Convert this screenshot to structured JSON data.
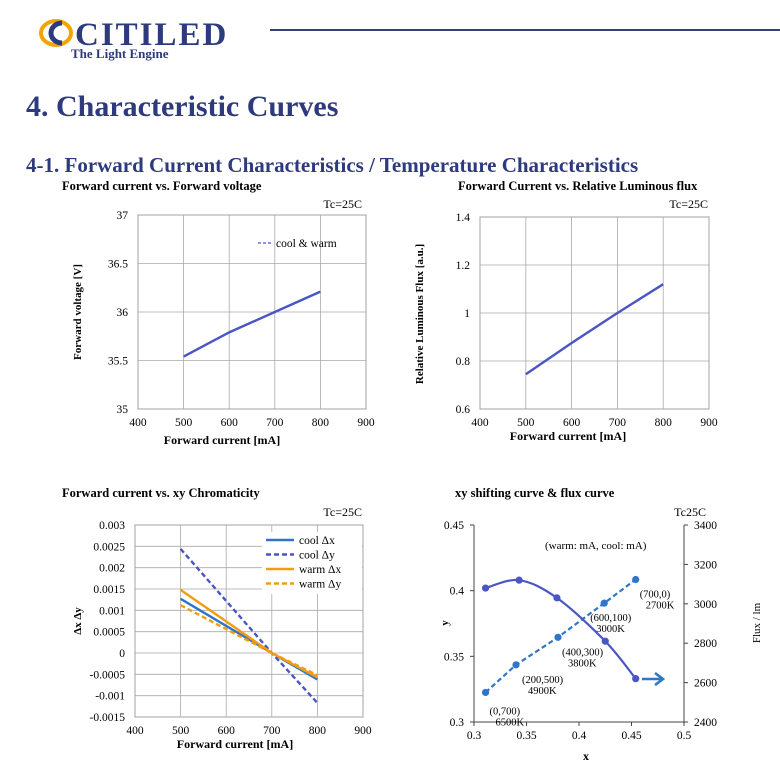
{
  "header": {
    "logo_text": "CITILED",
    "logo_tagline": "The Light Engine",
    "brand_color": "#2e3a7e",
    "accent_color": "#f0a500"
  },
  "section_title": "4. Characteristic Curves",
  "subsection_title": "4-1. Forward Current Characteristics / Temperature Characteristics",
  "chart_data": [
    {
      "type": "line",
      "title": "Forward current vs. Forward voltage",
      "condition": "Tc=25C",
      "xlabel": "Forward  current [mA]",
      "ylabel": "Forward voltage [V]",
      "xlim": [
        400,
        900
      ],
      "ylim": [
        35,
        37
      ],
      "xticks": [
        400,
        500,
        600,
        700,
        800,
        900
      ],
      "yticks": [
        35,
        35.5,
        36,
        36.5,
        37
      ],
      "grid": true,
      "legend_position": "top-right",
      "series": [
        {
          "name": "cool & warm",
          "color": "#4a56c4",
          "style": "solid",
          "x": [
            500,
            600,
            700,
            800
          ],
          "y": [
            35.54,
            35.79,
            36.0,
            36.21
          ]
        }
      ]
    },
    {
      "type": "line",
      "title": "Forward Current vs. Relative Luminous flux",
      "condition": "Tc=25C",
      "xlabel": "Forward  current [mA]",
      "ylabel": "Relative  Luminous  Flux  [a.u.]",
      "xlim": [
        400,
        900
      ],
      "ylim": [
        0.6,
        1.4
      ],
      "xticks": [
        400,
        500,
        600,
        700,
        800,
        900
      ],
      "yticks": [
        0.6,
        0.8,
        1,
        1.2,
        1.4
      ],
      "grid": true,
      "series": [
        {
          "color": "#4a56c4",
          "style": "solid",
          "x": [
            500,
            600,
            700,
            800
          ],
          "y": [
            0.745,
            0.875,
            1.0,
            1.12
          ]
        }
      ]
    },
    {
      "type": "line",
      "title": "Forward current vs. xy Chromaticity",
      "condition": "Tc=25C",
      "xlabel": "Forward  current [mA]",
      "ylabel": "Δx  Δy",
      "xlim": [
        400,
        900
      ],
      "ylim": [
        -0.0015,
        0.003
      ],
      "xticks": [
        400,
        500,
        600,
        700,
        800,
        900
      ],
      "yticks": [
        -0.0015,
        -0.001,
        -0.0005,
        0,
        0.0005,
        0.001,
        0.0015,
        0.002,
        0.0025,
        0.003
      ],
      "grid": true,
      "legend_position": "top-right",
      "series": [
        {
          "name": "cool Δx",
          "color": "#2f76c8",
          "style": "solid",
          "x": [
            500,
            700,
            800
          ],
          "y": [
            0.00127,
            0,
            -0.00062
          ]
        },
        {
          "name": "cool Δy",
          "color": "#4a56c4",
          "style": "dashed",
          "x": [
            500,
            700,
            800
          ],
          "y": [
            0.00244,
            0,
            -0.00117
          ]
        },
        {
          "name": "warm Δx",
          "color": "#f39c12",
          "style": "solid",
          "x": [
            500,
            700,
            800
          ],
          "y": [
            0.00148,
            0,
            -0.00057
          ]
        },
        {
          "name": "warm Δy",
          "color": "#f39c12",
          "style": "dashed",
          "x": [
            500,
            700,
            800
          ],
          "y": [
            0.00112,
            0,
            -0.00052
          ]
        }
      ]
    },
    {
      "type": "scatter",
      "title": "xy shifting curve & flux curve",
      "condition": "Tc25C",
      "xlabel": "x",
      "ylabel": "y",
      "y2label": "Flux / lm",
      "xlim": [
        0.3,
        0.5
      ],
      "ylim": [
        0.3,
        0.45
      ],
      "y2lim": [
        2400,
        3400
      ],
      "xticks": [
        0.3,
        0.35,
        0.4,
        0.45,
        0.5
      ],
      "yticks": [
        0.3,
        0.35,
        0.4,
        0.45
      ],
      "y2ticks": [
        2400,
        2600,
        2800,
        3000,
        3200,
        3400
      ],
      "grid": false,
      "note": "(warm: mA, cool: mA)",
      "series": [
        {
          "axis": "y",
          "color": "#2f76c8",
          "style": "dashed",
          "x": [
            0.311,
            0.34,
            0.38,
            0.424,
            0.454
          ],
          "y": [
            0.3225,
            0.3435,
            0.3645,
            0.3905,
            0.4085
          ]
        },
        {
          "axis": "y2",
          "color": "#4a56c4",
          "style": "solid",
          "x": [
            0.311,
            0.343,
            0.379,
            0.425,
            0.454
          ],
          "y": [
            3080,
            3120,
            3030,
            2810,
            2620
          ]
        }
      ],
      "annotations": [
        {
          "lines": [
            "(0,700)",
            "6500K"
          ],
          "x": 0.311,
          "y": 0.3225
        },
        {
          "lines": [
            "(200,500)",
            "4900K"
          ],
          "x": 0.34,
          "y": 0.3435
        },
        {
          "lines": [
            "(400,300)",
            "3800K"
          ],
          "x": 0.38,
          "y": 0.3645
        },
        {
          "lines": [
            "(600,100)",
            "3000K"
          ],
          "x": 0.424,
          "y": 0.3905
        },
        {
          "lines": [
            "(700,0)",
            "2700K"
          ],
          "x": 0.454,
          "y": 0.4085
        }
      ]
    }
  ]
}
